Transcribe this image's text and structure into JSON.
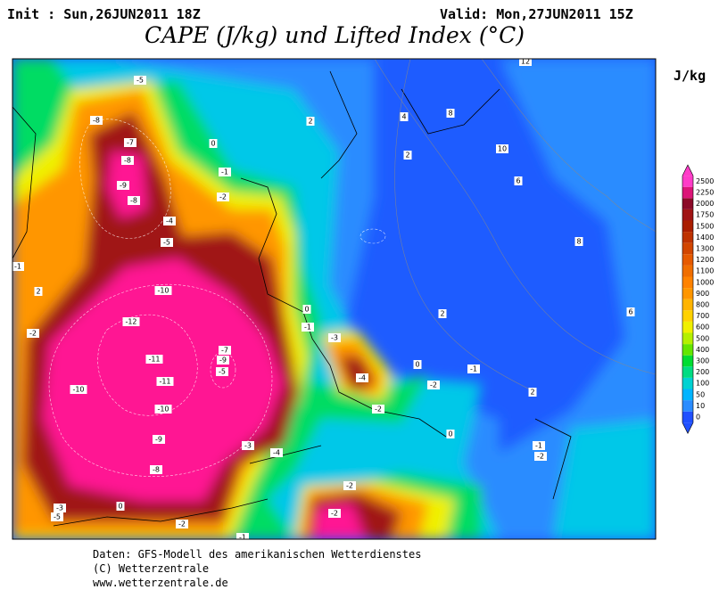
{
  "header": {
    "init": "Init : Sun,26JUN2011 18Z",
    "valid": "Valid: Mon,27JUN2011 15Z",
    "title": "CAPE (J/kg) und Lifted Index (°C)"
  },
  "legend": {
    "unit": "J/kg",
    "levels": [
      0,
      10,
      50,
      100,
      200,
      300,
      400,
      500,
      600,
      700,
      800,
      900,
      1000,
      1100,
      1200,
      1300,
      1400,
      1500,
      1750,
      2000,
      2250,
      2500
    ],
    "colors": [
      "#2050ff",
      "#2a8cff",
      "#00b4ff",
      "#00d2d2",
      "#00dc82",
      "#00dc32",
      "#64e600",
      "#b4f000",
      "#f0f000",
      "#ffd200",
      "#ffb400",
      "#ff9600",
      "#ff8200",
      "#f06e00",
      "#e65a00",
      "#d24600",
      "#be3200",
      "#aa1e00",
      "#a01414",
      "#8c0a28",
      "#dc1478",
      "#ff3cc8"
    ]
  },
  "map": {
    "contour_labels": [
      "-5",
      "-8",
      "-7",
      "-8",
      "-9",
      "-8",
      "-4",
      "-5",
      "-10",
      "-12",
      "-11",
      "-11",
      "-10",
      "-10",
      "-9",
      "-8",
      "-7",
      "-9",
      "-5",
      "-4",
      "-3",
      "0",
      "-1",
      "-2",
      "2",
      "2",
      "4",
      "8",
      "10",
      "12",
      "6",
      "8",
      "6",
      "2",
      "0",
      "-1",
      "-3",
      "-4",
      "-2",
      "-2",
      "0",
      "2",
      "-1",
      "-2",
      "-2",
      "-2",
      "-1",
      "-2",
      "0",
      "-3",
      "-5",
      "-2",
      "2",
      "-1",
      "0",
      "-1"
    ]
  },
  "footer": [
    "Daten: GFS-Modell des amerikanischen Wetterdienstes",
    "(C) Wetterzentrale",
    "www.wetterzentrale.de"
  ]
}
